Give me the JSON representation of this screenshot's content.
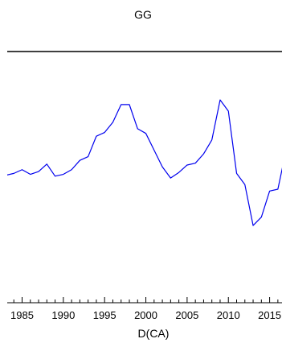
{
  "chart_data": {
    "type": "line",
    "title": "GG",
    "xlabel": "D(CA)",
    "ylabel": "",
    "x_ticks": [
      1985,
      1990,
      1995,
      2000,
      2005,
      2010,
      2015
    ],
    "x_tick_labels": [
      "1985",
      "1990",
      "1995",
      "2000",
      "2005",
      "2010",
      "2015"
    ],
    "xlim": [
      1983.2,
      2016.5
    ],
    "ylim": [
      -1.45,
      1.25
    ],
    "grid": false,
    "legend": "none",
    "series": [
      {
        "color": "#0000ee",
        "x": [
          1983,
          1984,
          1985,
          1986,
          1987,
          1988,
          1989,
          1990,
          1991,
          1992,
          1993,
          1994,
          1995,
          1996,
          1997,
          1998,
          1999,
          2000,
          2001,
          2002,
          2003,
          2004,
          2005,
          2006,
          2007,
          2008,
          2009,
          2010,
          2011,
          2012,
          2013,
          2014,
          2015,
          2016,
          2017
        ],
        "y": [
          -0.08,
          -0.06,
          -0.02,
          -0.07,
          -0.04,
          0.04,
          -0.09,
          -0.07,
          -0.02,
          0.08,
          0.12,
          0.34,
          0.38,
          0.49,
          0.68,
          0.68,
          0.42,
          0.37,
          0.19,
          0.01,
          -0.11,
          -0.05,
          0.03,
          0.05,
          0.15,
          0.3,
          0.73,
          0.61,
          -0.06,
          -0.18,
          -0.62,
          -0.53,
          -0.25,
          -0.23,
          0.19
        ]
      }
    ]
  }
}
